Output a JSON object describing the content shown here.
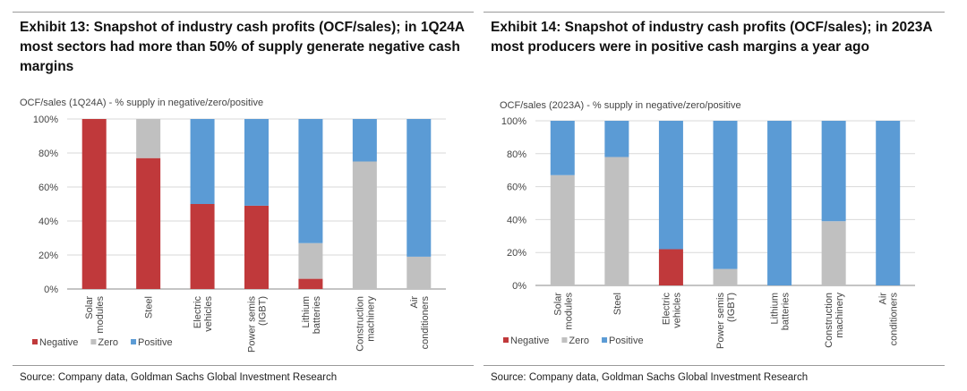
{
  "colors": {
    "Negative": "#c0393b",
    "Zero": "#c0c0c0",
    "Positive": "#5b9bd5"
  },
  "panels": [
    {
      "title": "Exhibit 13: Snapshot of industry cash profits (OCF/sales); in 1Q24A most sectors had more than 50% of supply generate negative cash margins",
      "source": "Source: Company data, Goldman Sachs Global Investment Research"
    },
    {
      "title": "Exhibit 14: Snapshot of industry cash profits (OCF/sales); in 2023A most producers were in positive cash margins a year ago",
      "source": "Source: Company data, Goldman Sachs Global Investment Research"
    }
  ],
  "chart_data": [
    {
      "type": "bar",
      "stacked": true,
      "title": "OCF/sales (1Q24A) - % supply in negative/zero/positive",
      "categories": [
        "Solar modules",
        "Steel",
        "Electric vehicles",
        "Power semis (IGBT)",
        "Lithium batteries",
        "Construction machinery",
        "Air conditioners"
      ],
      "series": [
        {
          "name": "Negative",
          "values": [
            100,
            77,
            50,
            49,
            6,
            0,
            0
          ]
        },
        {
          "name": "Zero",
          "values": [
            0,
            23,
            0,
            0,
            21,
            75,
            19
          ]
        },
        {
          "name": "Positive",
          "values": [
            0,
            0,
            50,
            51,
            73,
            25,
            81
          ]
        }
      ],
      "yticks": [
        "0%",
        "20%",
        "40%",
        "60%",
        "80%",
        "100%"
      ],
      "ylim": [
        0,
        100
      ],
      "legend": "bottom-left"
    },
    {
      "type": "bar",
      "stacked": true,
      "title": "OCF/sales (2023A) - % supply in negative/zero/positive",
      "categories": [
        "Solar modules",
        "Steel",
        "Electric vehicles",
        "Power semis (IGBT)",
        "Lithium batteries",
        "Construction machinery",
        "Air conditioners"
      ],
      "series": [
        {
          "name": "Negative",
          "values": [
            0,
            0,
            22,
            0,
            0,
            0,
            0
          ]
        },
        {
          "name": "Zero",
          "values": [
            67,
            78,
            0,
            10,
            0,
            39,
            0
          ]
        },
        {
          "name": "Positive",
          "values": [
            33,
            22,
            78,
            90,
            100,
            61,
            100
          ]
        }
      ],
      "yticks": [
        "0%",
        "20%",
        "40%",
        "60%",
        "80%",
        "100%"
      ],
      "ylim": [
        0,
        100
      ],
      "legend": "bottom-left"
    }
  ]
}
